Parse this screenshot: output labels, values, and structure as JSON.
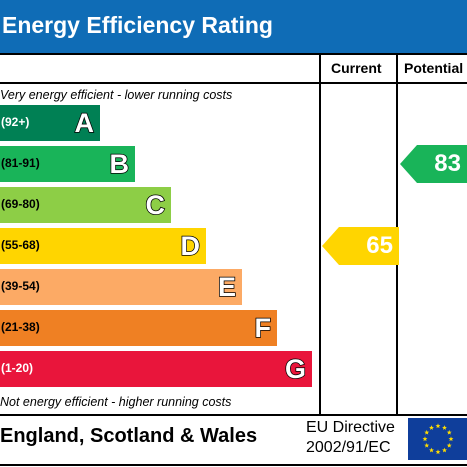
{
  "header": {
    "title": "Energy Efficiency Rating"
  },
  "columns": {
    "current": "Current",
    "potential": "Potential"
  },
  "notes": {
    "top": "Very energy efficient - lower running costs",
    "bottom": "Not energy efficient - higher running costs"
  },
  "bands": [
    {
      "range": "(92+)",
      "letter": "A",
      "color": "#008054"
    },
    {
      "range": "(81-91)",
      "letter": "B",
      "color": "#19b459"
    },
    {
      "range": "(69-80)",
      "letter": "C",
      "color": "#8dce46"
    },
    {
      "range": "(55-68)",
      "letter": "D",
      "color": "#ffd500"
    },
    {
      "range": "(39-54)",
      "letter": "E",
      "color": "#fcaa65"
    },
    {
      "range": "(21-38)",
      "letter": "F",
      "color": "#ef8023"
    },
    {
      "range": "(1-20)",
      "letter": "G",
      "color": "#e9153b"
    }
  ],
  "chart_data": {
    "type": "bar",
    "categories": [
      "A",
      "B",
      "C",
      "D",
      "E",
      "F",
      "G"
    ],
    "ranges": [
      "(92+)",
      "(81-91)",
      "(69-80)",
      "(55-68)",
      "(39-54)",
      "(21-38)",
      "(1-20)"
    ],
    "current": {
      "value": 65,
      "band": "D",
      "color": "#ffd500"
    },
    "potential": {
      "value": 83,
      "band": "B",
      "color": "#19b459"
    },
    "title": "Energy Efficiency Rating"
  },
  "footer": {
    "country": "England, Scotland & Wales",
    "directive_line1": "EU Directive",
    "directive_line2": "2002/91/EC"
  },
  "flag": {
    "color": "#0f3e9b",
    "star_color": "#ffdd00",
    "icon": "eu-flag-icon"
  }
}
